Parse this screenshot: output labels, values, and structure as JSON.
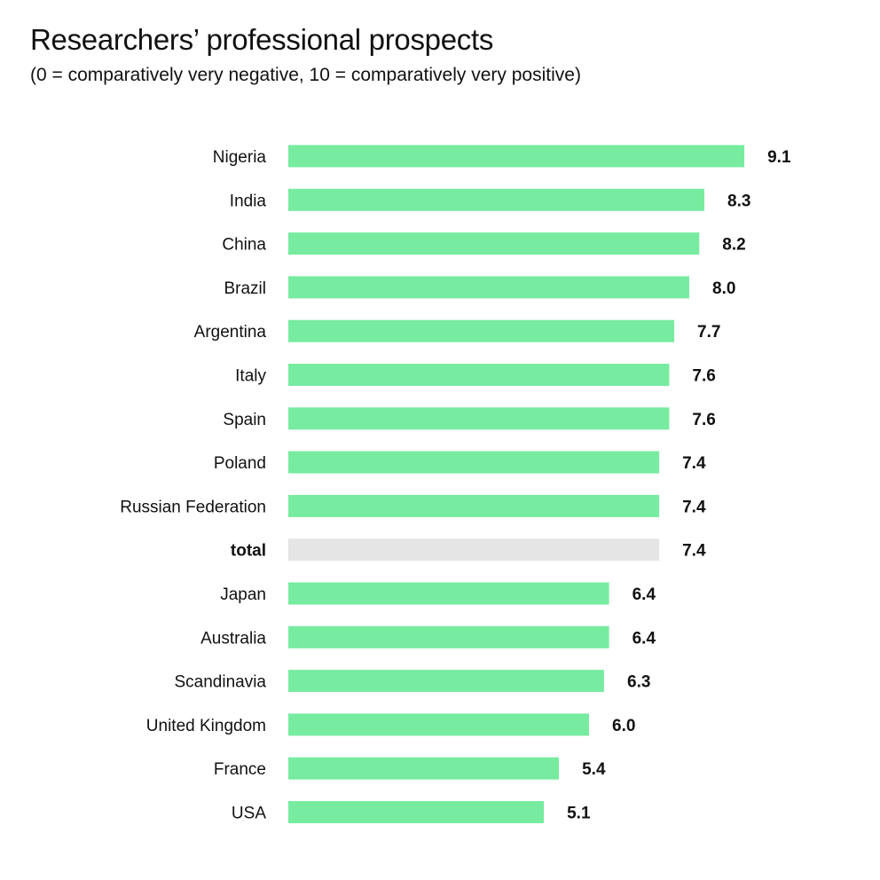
{
  "chart_data": {
    "type": "bar",
    "orientation": "horizontal",
    "title": "Researchers’ professional prospects",
    "subtitle": "(0 = comparatively very negative, 10 = comparatively very positive)",
    "categories": [
      "Nigeria",
      "India",
      "China",
      "Brazil",
      "Argentina",
      "Italy",
      "Spain",
      "Poland",
      "Russian Federation",
      "total",
      "Japan",
      "Australia",
      "Scandinavia",
      "United Kingdom",
      "France",
      "USA"
    ],
    "values": [
      9.1,
      8.3,
      8.2,
      8.0,
      7.7,
      7.6,
      7.6,
      7.4,
      7.4,
      7.4,
      6.4,
      6.4,
      6.3,
      6.0,
      5.4,
      5.1
    ],
    "value_labels": [
      "9.1",
      "8.3",
      "8.2",
      "8.0",
      "7.7",
      "7.6",
      "7.6",
      "7.4",
      "7.4",
      "7.4",
      "6.4",
      "6.4",
      "6.3",
      "6.0",
      "5.4",
      "5.1"
    ],
    "highlight_category": "total",
    "xlim": [
      0,
      10
    ],
    "grid": false,
    "colors": {
      "bar": "#77eba0",
      "highlight_bar": "#e5e5e5"
    }
  }
}
